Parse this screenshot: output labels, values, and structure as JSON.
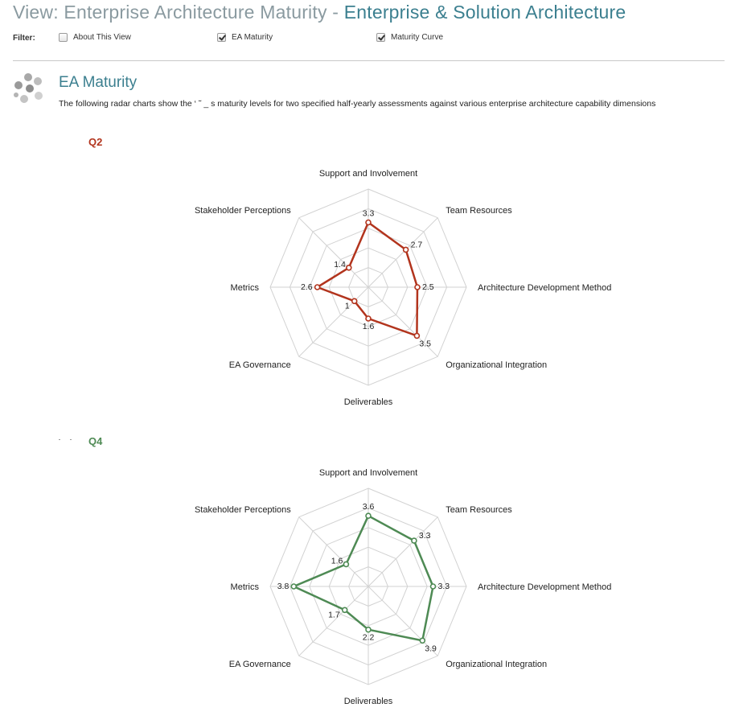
{
  "header": {
    "title_prefix": "View: Enterprise Architecture Maturity - ",
    "title_accent": "Enterprise & Solution Architecture"
  },
  "filter": {
    "label": "Filter:",
    "options": [
      {
        "label": "About This View",
        "checked": false
      },
      {
        "label": "EA Maturity",
        "checked": true
      },
      {
        "label": "Maturity Curve",
        "checked": true
      }
    ]
  },
  "section": {
    "title": "EA Maturity",
    "description": "The following radar charts show the ‘ ˜ _ s maturity levels for two specified half-yearly assessments against various enterprise architecture capability dimensions",
    "icon": "gray-dots-cluster-icon"
  },
  "colors": {
    "q2_series": "#b2341d",
    "q4_series": "#4e8a54",
    "grid": "#d2d2d2",
    "title_accent": "#3b7f8f"
  },
  "chart_data": [
    {
      "type": "radar",
      "title": "Q2",
      "axes": [
        "Support and Involvement",
        "Team Resources",
        "Architecture Development Method",
        "Organizational Integration",
        "Deliverables",
        "EA Governance",
        "Metrics",
        "Stakeholder Perceptions"
      ],
      "series": [
        {
          "values": [
            3.3,
            2.7,
            2.5,
            3.5,
            1.6,
            1,
            2.6,
            1.4
          ]
        }
      ],
      "range": [
        0,
        5
      ],
      "grid_levels": 5
    },
    {
      "type": "radar",
      "title": "Q4",
      "axes": [
        "Support and Involvement",
        "Team Resources",
        "Architecture Development Method",
        "Organizational Integration",
        "Deliverables",
        "EA Governance",
        "Metrics",
        "Stakeholder Perceptions"
      ],
      "series": [
        {
          "values": [
            3.6,
            3.3,
            3.3,
            3.9,
            2.2,
            1.7,
            3.8,
            1.6
          ]
        }
      ],
      "range": [
        0,
        5
      ],
      "grid_levels": 5
    }
  ]
}
